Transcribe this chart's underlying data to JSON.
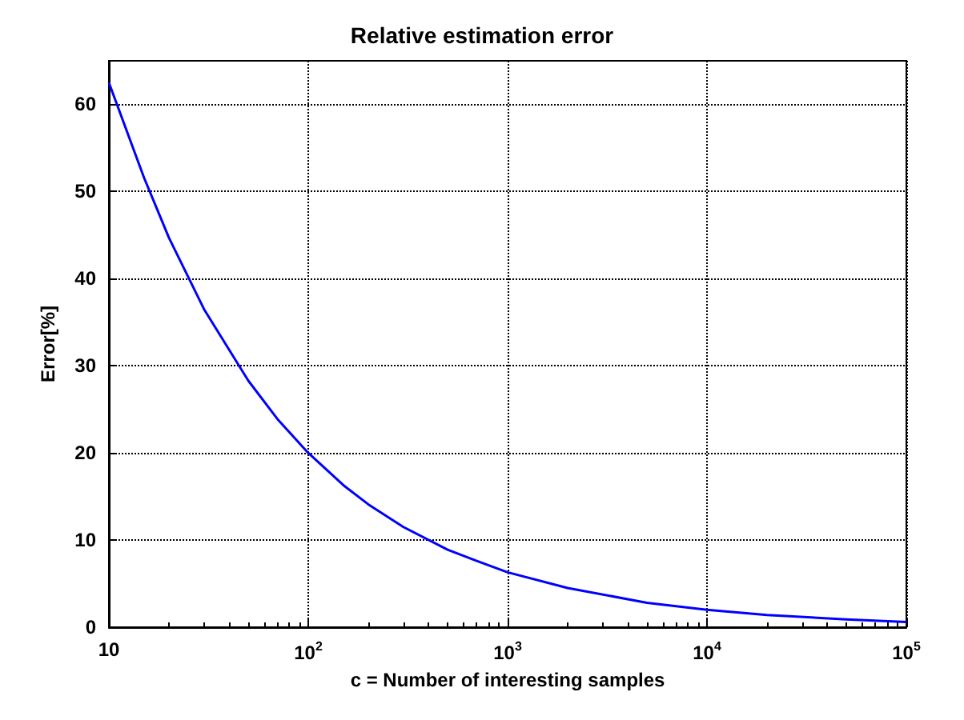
{
  "chart_data": {
    "type": "line",
    "title": "Relative estimation error",
    "xlabel": "c = Number of interesting samples",
    "ylabel": "Error[%]",
    "x": [
      10,
      15,
      20,
      30,
      50,
      70,
      100,
      150,
      200,
      300,
      500,
      700,
      1000,
      2000,
      5000,
      10000,
      20000,
      50000,
      100000
    ],
    "series": [
      {
        "color": "#0000ff",
        "values": [
          62.5,
          51.6,
          44.7,
          36.5,
          28.3,
          23.9,
          20,
          16.3,
          14.1,
          11.5,
          8.9,
          7.6,
          6.3,
          4.5,
          2.8,
          2,
          1.4,
          0.9,
          0.6
        ]
      }
    ],
    "log": "x",
    "xlim": [
      10,
      100000
    ],
    "xticks": [
      10,
      {
        "value": 100,
        "label": "10$^{2}$"
      },
      {
        "value": 1000,
        "label": "10$^{3}$"
      },
      {
        "value": 10000,
        "label": "10$^{4}$"
      },
      {
        "value": 100000,
        "label": "10$^{5}$"
      }
    ],
    "ylim": [
      0,
      65
    ],
    "yticks": [
      0,
      10,
      20,
      30,
      40,
      50,
      60
    ],
    "grid": true,
    "marker": "none",
    "line_style": "solid"
  }
}
